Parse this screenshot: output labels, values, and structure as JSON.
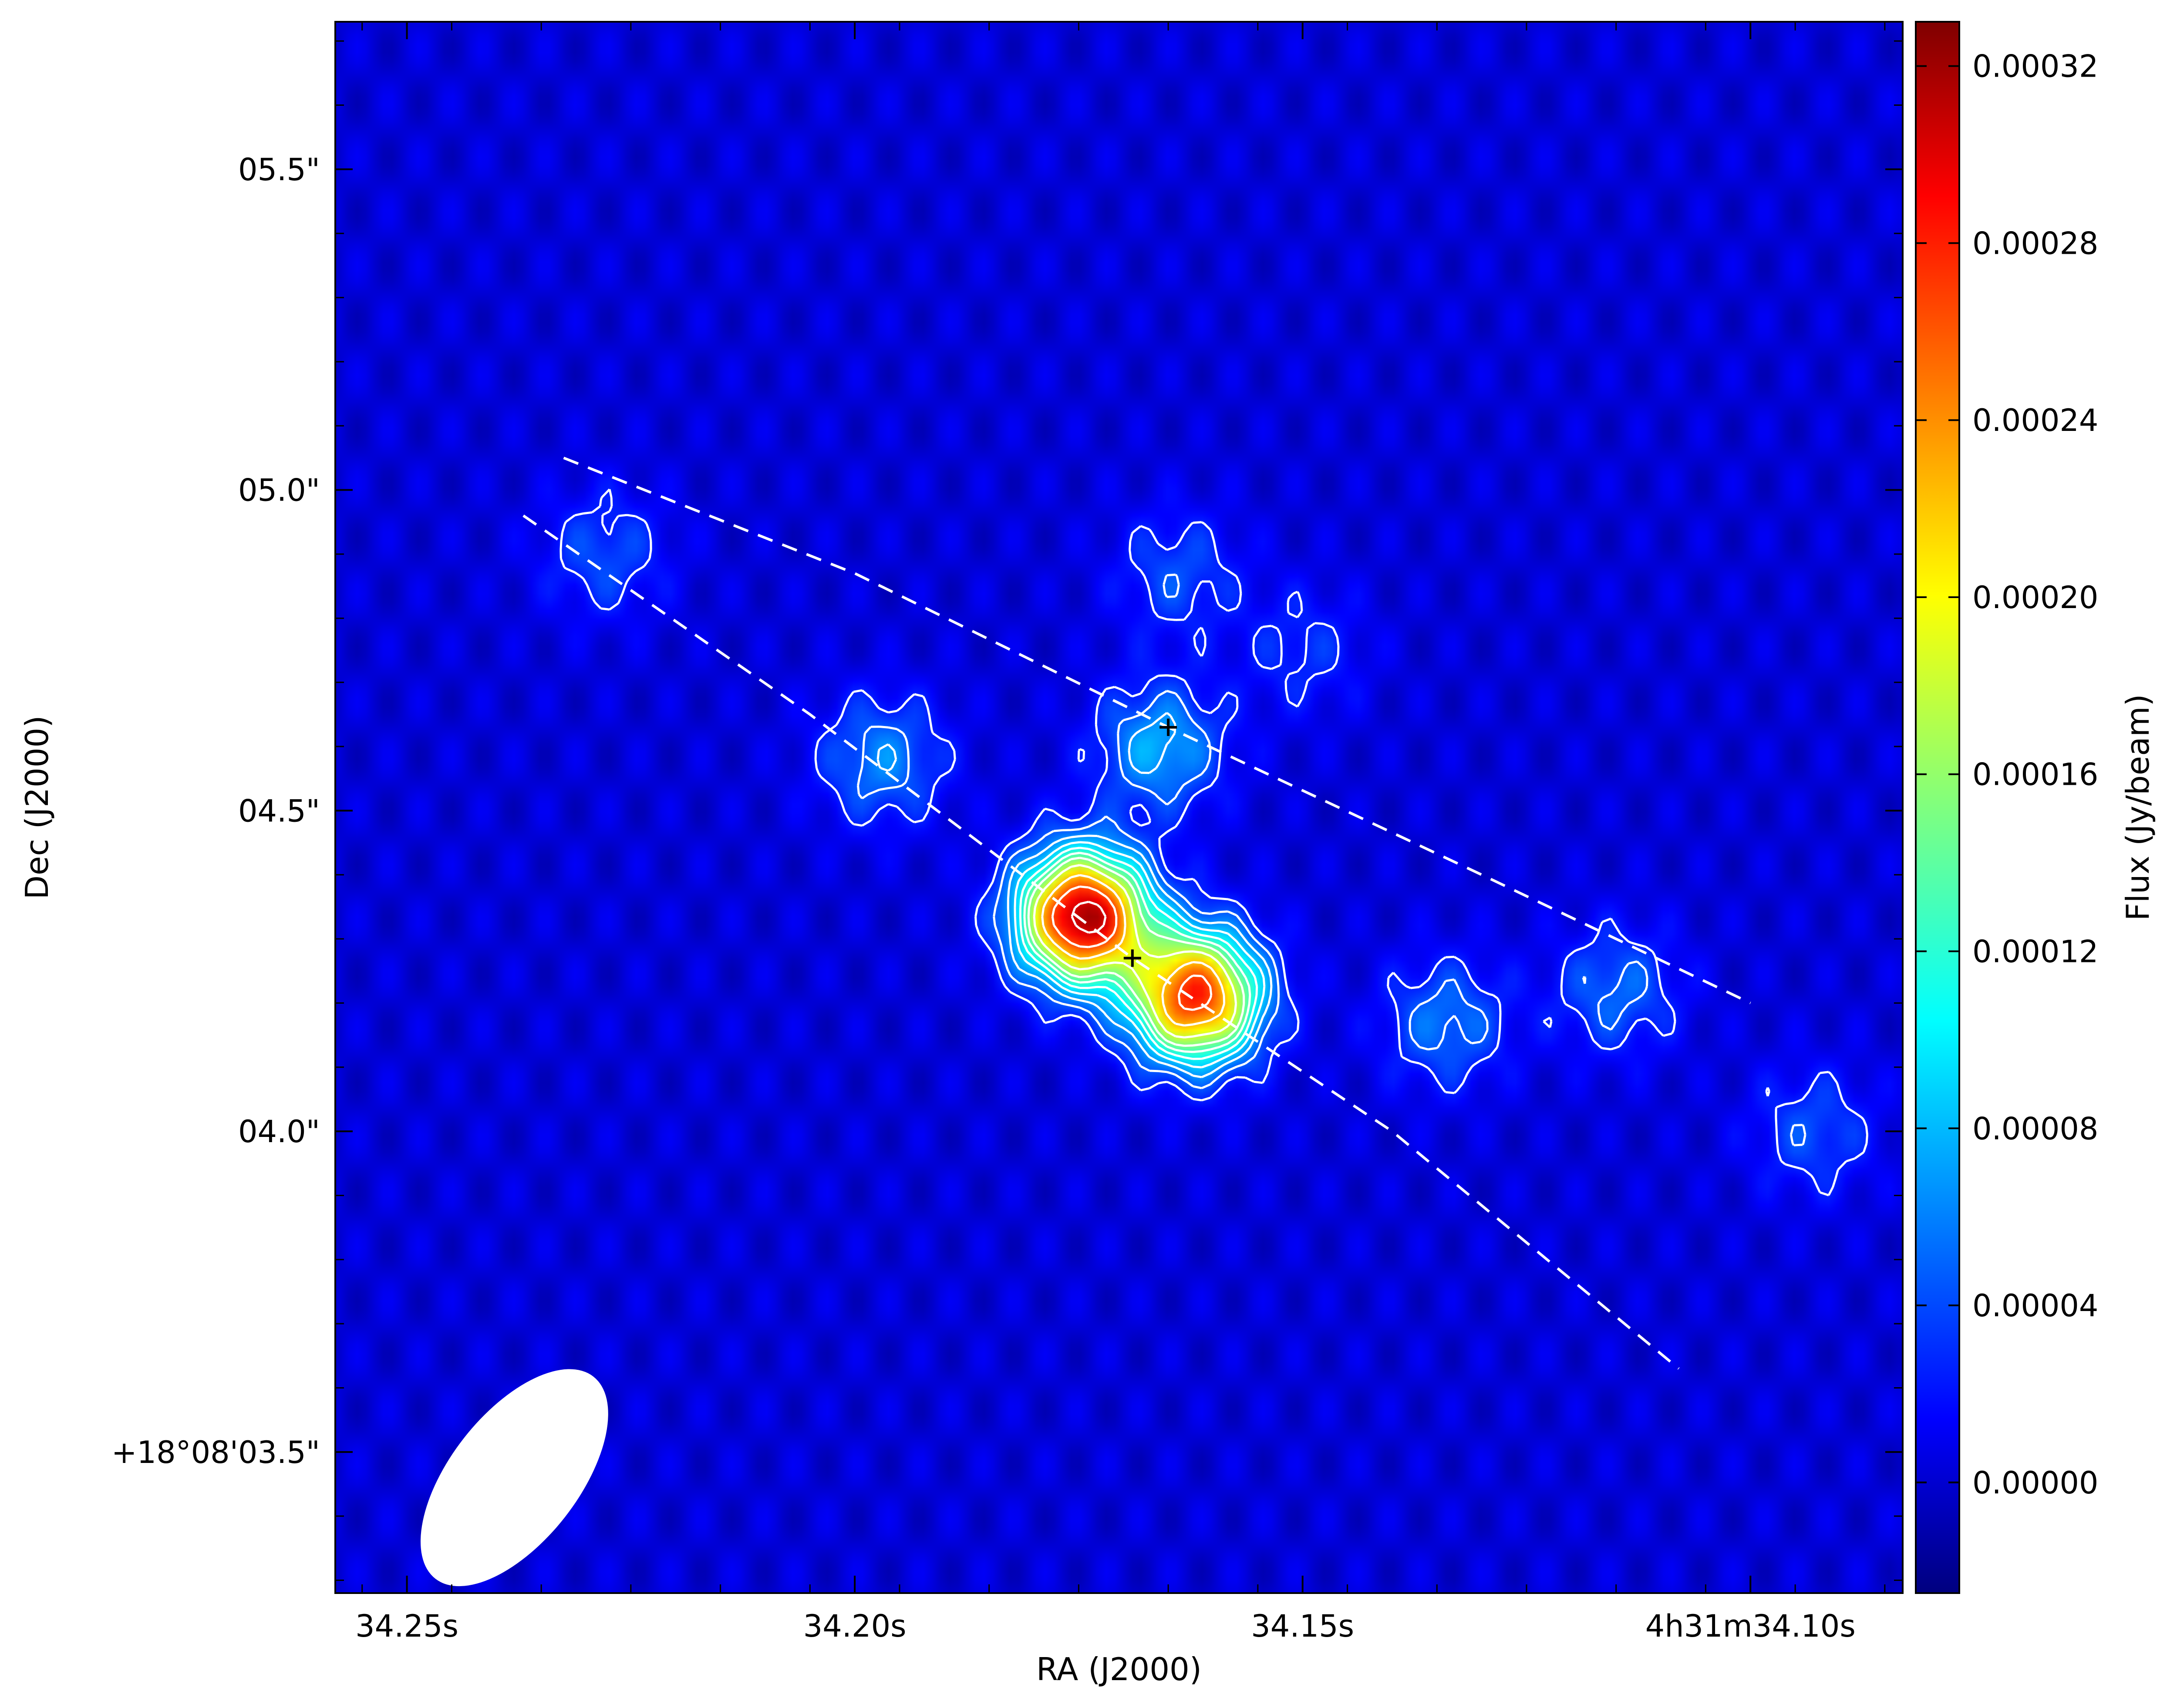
{
  "chart_data": {
    "type": "heatmap",
    "title": "",
    "xlabel": "RA (J2000)",
    "ylabel": "Dec (J2000)",
    "x_tick_labels": [
      "34.25s",
      "34.20s",
      "34.15s",
      "4h31m34.10s"
    ],
    "x_tick_values_s": [
      34.25,
      34.2,
      34.15,
      34.1
    ],
    "xlim_s": [
      34.258,
      34.083
    ],
    "y_tick_labels": [
      "05.5\"",
      "05.0\"",
      "04.5\"",
      "04.0\"",
      "+18°08'03.5\""
    ],
    "y_tick_values_arcsec": [
      5.5,
      5.0,
      4.5,
      4.0,
      3.5
    ],
    "ylim_arcsec": [
      3.28,
      5.73
    ],
    "colorbar": {
      "label": "Flux (Jy/beam)",
      "colormap": "jet",
      "range": [
        -2.5e-05,
        0.00033
      ],
      "tick_values": [
        0.0,
        4e-05,
        8e-05,
        0.00012,
        0.00016,
        0.0002,
        0.00024,
        0.00028,
        0.00032
      ],
      "tick_labels": [
        "0.00000",
        "0.00004",
        "0.00008",
        "0.00012",
        "0.00016",
        "0.00020",
        "0.00024",
        "0.00028",
        "0.00032"
      ]
    },
    "background_flux": 5e-06,
    "sources": [
      {
        "ra_s": 34.1745,
        "dec_arcsec": 4.335,
        "peak": 0.000315
      },
      {
        "ra_s": 34.162,
        "dec_arcsec": 4.21,
        "peak": 0.00027
      },
      {
        "ra_s": 34.166,
        "dec_arcsec": 4.6,
        "peak": 7.5e-05
      },
      {
        "ra_s": 34.197,
        "dec_arcsec": 4.58,
        "peak": 6e-05
      },
      {
        "ra_s": 34.134,
        "dec_arcsec": 4.17,
        "peak": 5.5e-05
      },
      {
        "ra_s": 34.115,
        "dec_arcsec": 4.22,
        "peak": 5e-05
      },
      {
        "ra_s": 34.228,
        "dec_arcsec": 4.9,
        "peak": 4e-05
      },
      {
        "ra_s": 34.164,
        "dec_arcsec": 4.87,
        "peak": 4e-05
      },
      {
        "ra_s": 34.093,
        "dec_arcsec": 4.0,
        "peak": 4e-05
      },
      {
        "ra_s": 34.15,
        "dec_arcsec": 4.75,
        "peak": 3e-05
      }
    ],
    "crosses": [
      {
        "ra_s": 34.165,
        "dec_arcsec": 4.63
      },
      {
        "ra_s": 34.169,
        "dec_arcsec": 4.27
      }
    ],
    "dashed_arcs": [
      [
        [
          34.2325,
          5.05
        ],
        [
          34.2,
          4.87
        ],
        [
          34.165,
          4.63
        ],
        [
          34.13,
          4.4
        ],
        [
          34.1,
          4.2
        ]
      ],
      [
        [
          34.237,
          4.96
        ],
        [
          34.205,
          4.65
        ],
        [
          34.169,
          4.27
        ],
        [
          34.14,
          4.0
        ],
        [
          34.108,
          3.63
        ]
      ]
    ],
    "beam": {
      "ra_s": 34.238,
      "dec_arcsec": 3.46,
      "major_arcsec": 0.2,
      "minor_arcsec": 0.1,
      "angle_deg": 38
    }
  }
}
